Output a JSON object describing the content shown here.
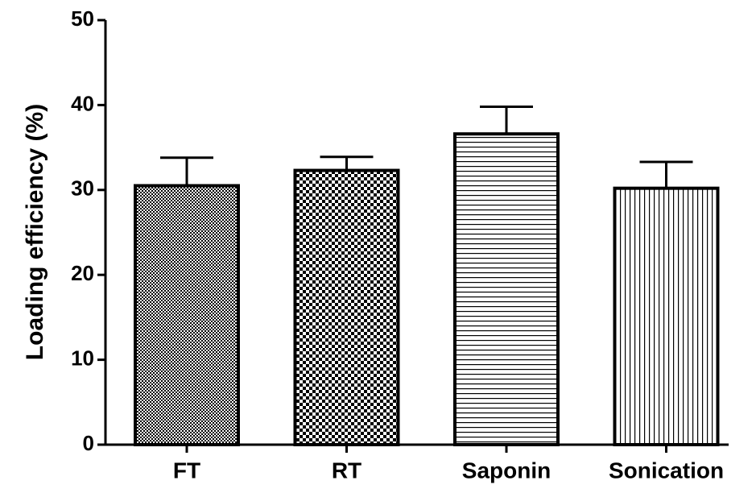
{
  "chart_data": {
    "type": "bar",
    "y_label": "Loading efficiency (%)",
    "categories": [
      "FT",
      "RT",
      "Saponin",
      "Sonication"
    ],
    "values": [
      30.5,
      32.3,
      36.6,
      30.2
    ],
    "errors": [
      3.3,
      1.6,
      3.2,
      3.1
    ],
    "color": "#000000",
    "ylim": [
      0,
      50
    ],
    "yticks": [
      0,
      10,
      20,
      30,
      40,
      50
    ],
    "grid": false
  }
}
